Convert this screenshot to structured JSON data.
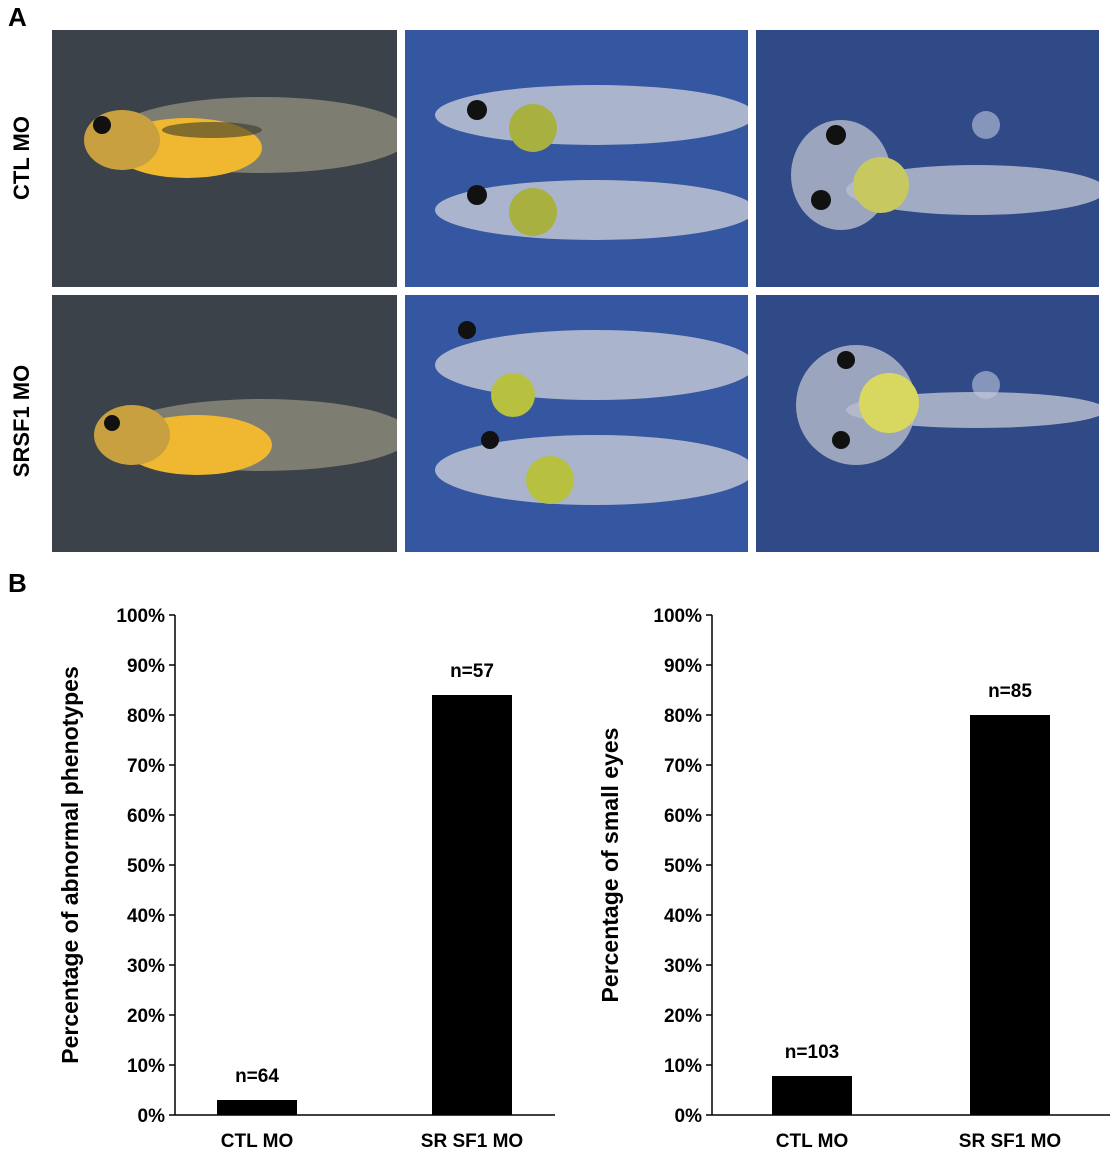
{
  "panel_a": {
    "letter": "A",
    "rows": [
      {
        "label": "CTL MO"
      },
      {
        "label": "SRSF1 MO"
      }
    ]
  },
  "panel_b": {
    "letter": "B"
  },
  "colors": {
    "bar": "#000000",
    "photo_dark": "#3a4148",
    "photo_blue": "#2f4f8a",
    "embryo_yellow": "#f0b830"
  },
  "chart_data": [
    {
      "type": "bar",
      "categories": [
        "CTL MO",
        "SR SF1 MO"
      ],
      "values": [
        3,
        84
      ],
      "data_labels": [
        "n=64",
        "n=57"
      ],
      "ylabel": "Percentage of abnormal phenotypes",
      "yticks": [
        "0%",
        "10%",
        "20%",
        "30%",
        "40%",
        "50%",
        "60%",
        "70%",
        "80%",
        "90%",
        "100%"
      ],
      "ylim": [
        0,
        100
      ],
      "grid": false
    },
    {
      "type": "bar",
      "categories": [
        "CTL MO",
        "SR SF1 MO"
      ],
      "values": [
        7.8,
        80
      ],
      "data_labels": [
        "n=103",
        "n=85"
      ],
      "ylabel": "Percentage of small eyes",
      "yticks": [
        "0%",
        "10%",
        "20%",
        "30%",
        "40%",
        "50%",
        "60%",
        "70%",
        "80%",
        "90%",
        "100%"
      ],
      "ylim": [
        0,
        100
      ],
      "grid": false
    }
  ]
}
